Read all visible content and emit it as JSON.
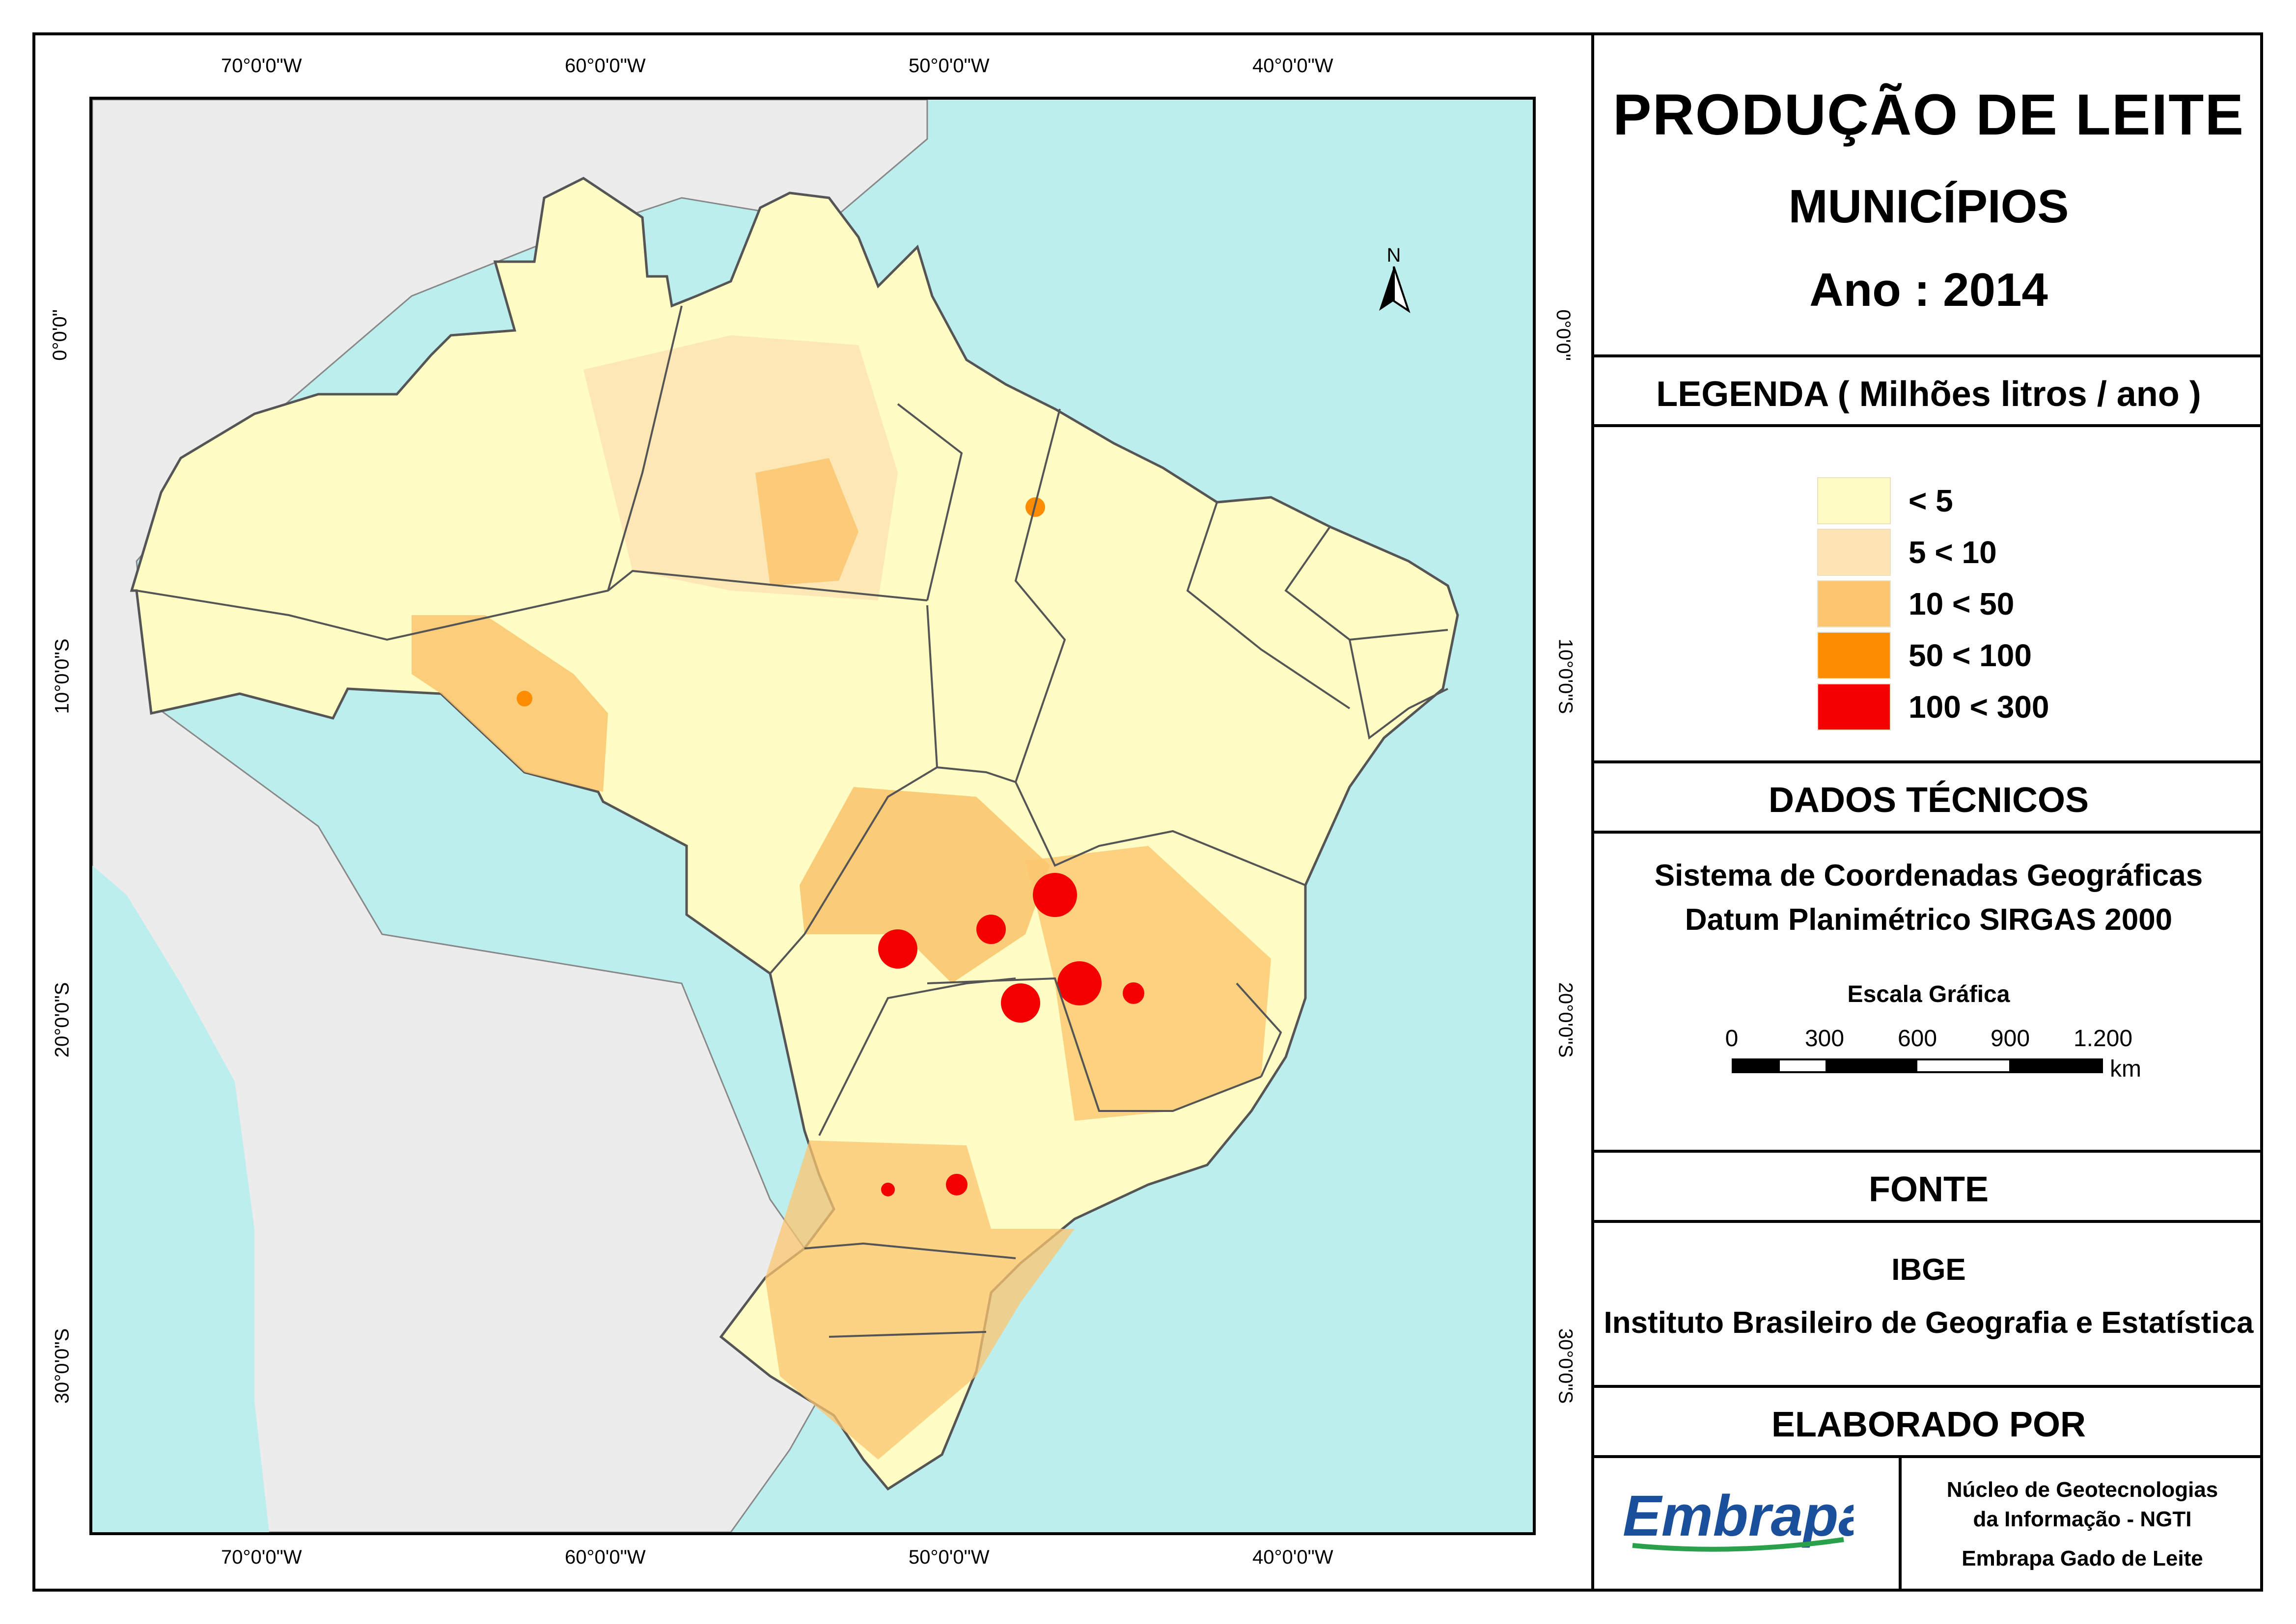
{
  "title": {
    "line1": "PRODUÇÃO DE LEITE",
    "line2": "MUNICÍPIOS",
    "line3": "Ano : 2014"
  },
  "legend": {
    "heading": "LEGENDA ( Milhões litros / ano )",
    "items": [
      {
        "label": "< 5",
        "color": "#fffcc4"
      },
      {
        "label": "5 < 10",
        "color": "#fde4b2"
      },
      {
        "label": "10 < 50",
        "color": "#fbc66f"
      },
      {
        "label": "50 < 100",
        "color": "#fe8c00"
      },
      {
        "label": "100 < 300",
        "color": "#f50000"
      }
    ]
  },
  "technical": {
    "heading": "DADOS TÉCNICOS",
    "line1": "Sistema de Coordenadas Geográficas",
    "line2": "Datum Planimétrico SIRGAS 2000",
    "scale_title": "Escala Gráfica",
    "scale_ticks": [
      "0",
      "300",
      "600",
      "900",
      "1.200"
    ],
    "scale_unit": "km"
  },
  "source": {
    "heading": "FONTE",
    "line1": "IBGE",
    "line2": "Instituto Brasileiro de Geografia e Estatística"
  },
  "made_by": {
    "heading": "ELABORADO POR",
    "logo_text": "Embrapa",
    "line1": "Núcleo de Geotecnologias",
    "line2": "da Informação - NGTI",
    "line3": "Embrapa Gado de Leite"
  },
  "map": {
    "north_label": "N",
    "lon_labels": [
      "70°0'0\"W",
      "60°0'0\"W",
      "50°0'0\"W",
      "40°0'0\"W"
    ],
    "lat_labels": [
      "0°0'0\"",
      "10°0'0\"S",
      "20°0'0\"S",
      "30°0'0\"S"
    ],
    "colors": {
      "ocean": "#bdeeee",
      "land_other": "#ececec",
      "border": "#555555"
    }
  }
}
